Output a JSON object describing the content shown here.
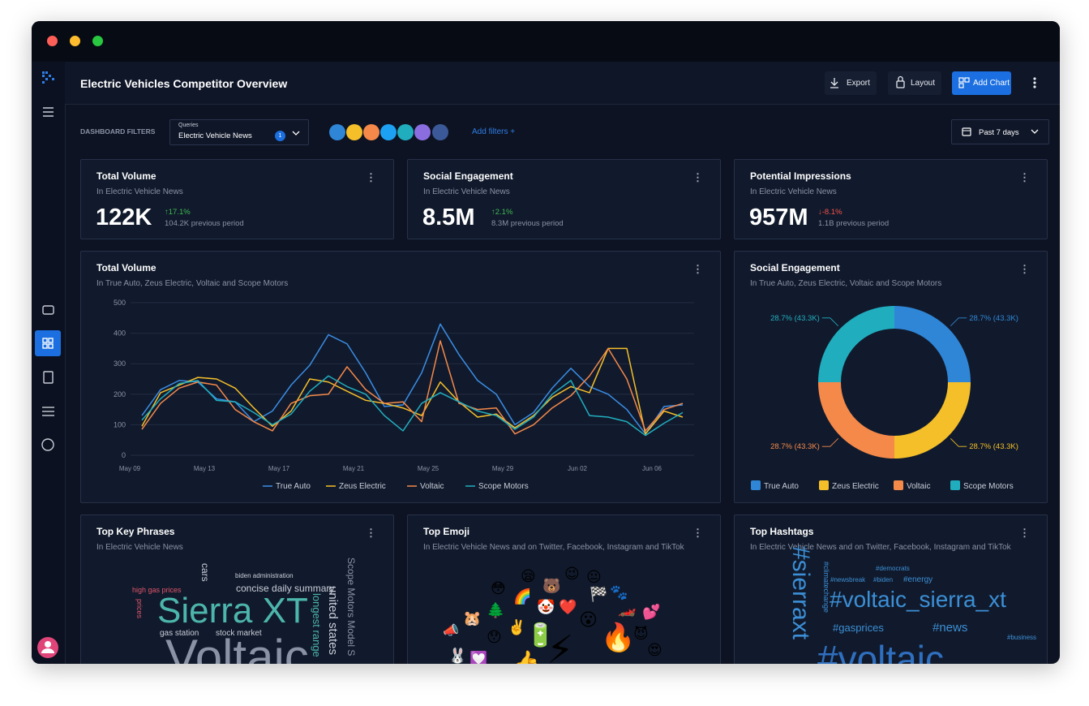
{
  "window": {
    "title": "Electric Vehicles Competitor Overview",
    "actions": [
      "Export",
      "Layout",
      "Add Chart"
    ]
  },
  "filters": {
    "label": "DASHBOARD FILTERS",
    "queries_label": "Queries",
    "query": "Electric Vehicle News",
    "query_count": 1,
    "add": "Add filters +",
    "date_range": "Past 7 days"
  },
  "kpis": [
    {
      "title": "Total Volume",
      "subtitle": "In Electric Vehicle News",
      "value": "122K",
      "change": "↑17.1%",
      "change_color": "#3fb950",
      "previous": "104.2K previous period"
    },
    {
      "title": "Social Engagement",
      "subtitle": "In  Electric Vehicle News",
      "value": "8.5M",
      "change": "↑2.1%",
      "change_color": "#3fb950",
      "previous": "8.3M previous period"
    },
    {
      "title": "Potential Impressions",
      "subtitle": "In Electric Vehicle News",
      "value": "957M",
      "change": "↓-8.1%",
      "change_color": "#f85149",
      "previous": "1.1B previous period"
    }
  ],
  "chart_data": [
    {
      "type": "line",
      "title": "Total Volume",
      "subtitle": "In True Auto, Zeus Electric, Voltaic and Scope Motors",
      "categories": [
        "May 09",
        null,
        null,
        null,
        "May 13",
        null,
        null,
        null,
        "May 17",
        null,
        null,
        null,
        "May 21",
        null,
        null,
        null,
        "May 25",
        null,
        null,
        null,
        "May 29",
        null,
        null,
        null,
        "Jun 02",
        null,
        null,
        null,
        "Jun 06",
        null
      ],
      "series": [
        {
          "name": "True Auto",
          "color": "#3a8ee6",
          "values": [
            130,
            215,
            245,
            240,
            185,
            175,
            110,
            145,
            230,
            295,
            395,
            365,
            270,
            160,
            165,
            270,
            430,
            330,
            245,
            200,
            100,
            140,
            220,
            285,
            225,
            200,
            150,
            70,
            160,
            165
          ]
        },
        {
          "name": "Zeus Electric",
          "color": "#f5bf2a",
          "values": [
            95,
            205,
            230,
            255,
            250,
            220,
            155,
            95,
            145,
            250,
            240,
            210,
            180,
            170,
            155,
            130,
            240,
            175,
            125,
            135,
            90,
            130,
            190,
            225,
            205,
            350,
            350,
            70,
            145,
            125
          ]
        },
        {
          "name": "Voltaic",
          "color": "#f5894a",
          "values": [
            85,
            170,
            220,
            240,
            230,
            150,
            110,
            80,
            170,
            195,
            200,
            290,
            215,
            170,
            175,
            110,
            375,
            170,
            150,
            155,
            70,
            100,
            155,
            195,
            260,
            350,
            250,
            80,
            150,
            170
          ]
        },
        {
          "name": "Scope Motors",
          "color": "#20aebf",
          "values": [
            115,
            185,
            235,
            245,
            180,
            175,
            140,
            100,
            135,
            210,
            260,
            225,
            200,
            130,
            80,
            170,
            205,
            175,
            145,
            130,
            85,
            125,
            200,
            245,
            130,
            125,
            110,
            65,
            105,
            140
          ]
        }
      ],
      "ylim": [
        0,
        500
      ],
      "yticks": [
        0,
        100,
        200,
        300,
        400,
        500
      ],
      "grid": true,
      "legend": "bottom"
    },
    {
      "type": "pie",
      "donut": true,
      "title": "Social Engagement",
      "subtitle": "In True Auto, Zeus Electric, Voltaic and Scope Motors",
      "categories": [
        "True Auto",
        "Zeus Electric",
        "Voltaic",
        "Scope Motors"
      ],
      "values": [
        28.7,
        28.7,
        28.7,
        28.7
      ],
      "value_labels": [
        "28.7% (43.3K)",
        "28.7% (43.3K)",
        "28.7% (43.3K)",
        "28.7% (43.3K)"
      ],
      "colors": [
        "#2f86d6",
        "#f5bf2a",
        "#f5894a",
        "#20aebf"
      ],
      "legend": "bottom"
    }
  ],
  "key_phrases": {
    "title": "Top Key Phrases",
    "subtitle": "In Electric Vehicle News",
    "words": [
      "Sierra XT",
      "Voltaic",
      "concise daily summary",
      "high gas prices",
      "gas station",
      "stock market",
      "biden administration",
      "united states",
      "longest range",
      "Scope Motors Model S",
      "cars",
      "prices"
    ]
  },
  "emoji": {
    "title": "Top Emoji",
    "subtitle": "In Electric Vehicle News and on Twitter, Facebook, Instagram and TikTok",
    "items": [
      "😳",
      "😪",
      "🐻",
      "😉",
      "😐",
      "🐾",
      "🌈",
      "🤡",
      "❤️",
      "🏁",
      "🏎️",
      "💕",
      "🐹",
      "🌲",
      "😮",
      "📣",
      "😯",
      "✌️",
      "🔋",
      "🔥",
      "😈",
      "🐰",
      "😍",
      "💟",
      "⚡",
      "👍"
    ]
  },
  "hashtags": {
    "title": "Top Hashtags",
    "subtitle": "In Electric Vehicle News and on Twitter, Facebook, Instagram and TikTok",
    "words": [
      "#voltaic_sierra_xt",
      "#voltaic",
      "#sierraxt",
      "#gasprices",
      "#news",
      "#energy",
      "#biden",
      "#newsbreak",
      "#democrats",
      "#climatechange",
      "#business"
    ]
  }
}
